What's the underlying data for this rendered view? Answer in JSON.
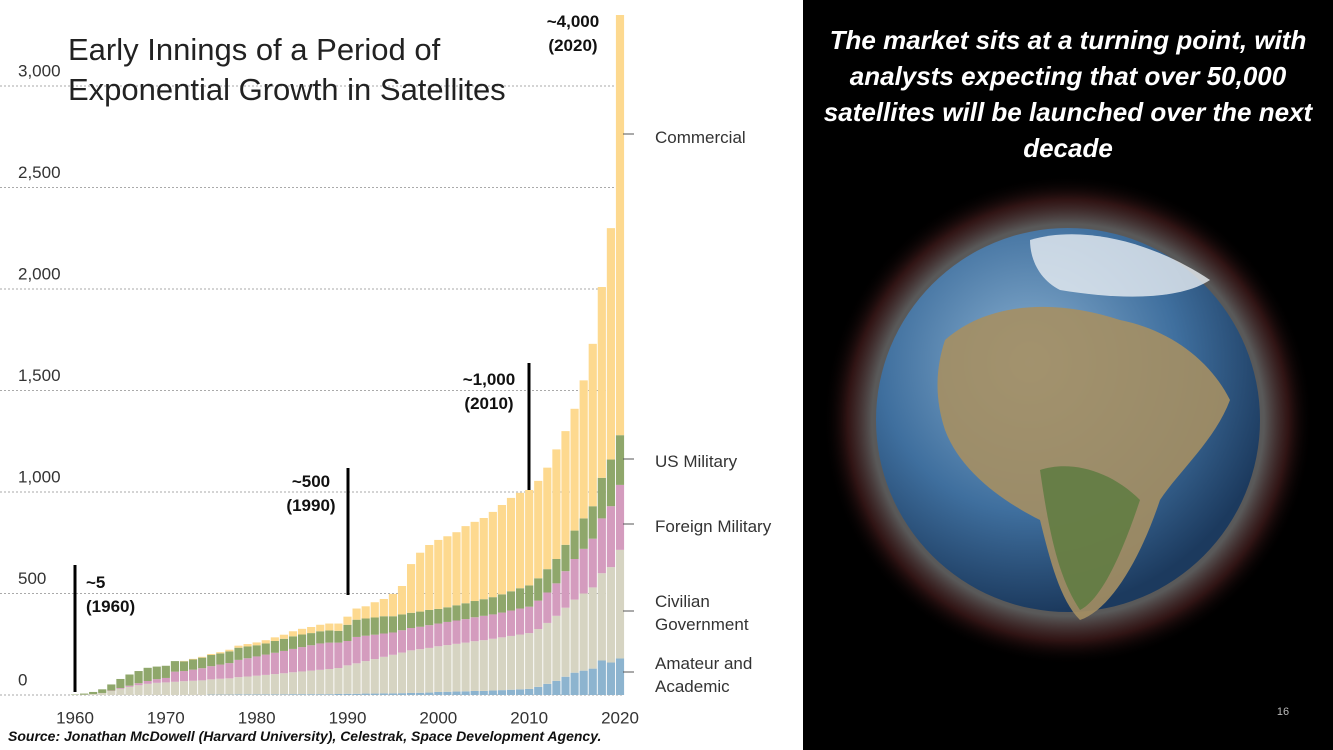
{
  "chart_data": {
    "type": "stacked_bar",
    "title": "Early Innings of a Period of Exponential Growth in Satellites",
    "x": [
      1960,
      1961,
      1962,
      1963,
      1964,
      1965,
      1966,
      1967,
      1968,
      1969,
      1970,
      1971,
      1972,
      1973,
      1974,
      1975,
      1976,
      1977,
      1978,
      1979,
      1980,
      1981,
      1982,
      1983,
      1984,
      1985,
      1986,
      1987,
      1988,
      1989,
      1990,
      1991,
      1992,
      1993,
      1994,
      1995,
      1996,
      1997,
      1998,
      1999,
      2000,
      2001,
      2002,
      2003,
      2004,
      2005,
      2006,
      2007,
      2008,
      2009,
      2010,
      2011,
      2012,
      2013,
      2014,
      2015,
      2016,
      2017,
      2018,
      2019,
      2020
    ],
    "xlim": [
      1959.5,
      2020.5
    ],
    "xticks": [
      1960,
      1970,
      1980,
      1990,
      2000,
      2010,
      2020
    ],
    "ylim": [
      0,
      3350
    ],
    "yticks": [
      0,
      500,
      {
        "value": 1000,
        "label": "1,000"
      },
      {
        "value": 1500,
        "label": "1,500"
      },
      {
        "value": 2000,
        "label": "2,000"
      },
      {
        "value": 2500,
        "label": "2,500"
      },
      {
        "value": 3000,
        "label": "3,000"
      }
    ],
    "grid": true,
    "series": [
      {
        "name": "Amateur and Academic",
        "color": "#8db4cf",
        "values": [
          0,
          0,
          0,
          0,
          0,
          0,
          0,
          0,
          0,
          0,
          0,
          0,
          0,
          0,
          0,
          2,
          2,
          2,
          3,
          3,
          3,
          3,
          3,
          3,
          4,
          4,
          4,
          4,
          4,
          5,
          6,
          6,
          7,
          7,
          8,
          8,
          9,
          10,
          11,
          12,
          15,
          16,
          17,
          18,
          20,
          20,
          22,
          24,
          26,
          28,
          30,
          40,
          55,
          70,
          90,
          110,
          120,
          130,
          170,
          160,
          180
        ]
      },
      {
        "name": "Civilian Government",
        "color": "#d6d4c2",
        "values": [
          0,
          2,
          5,
          10,
          20,
          30,
          40,
          48,
          55,
          60,
          62,
          65,
          68,
          70,
          72,
          75,
          78,
          80,
          85,
          88,
          92,
          96,
          100,
          104,
          108,
          112,
          116,
          120,
          124,
          128,
          140,
          150,
          160,
          170,
          180,
          190,
          200,
          210,
          215,
          220,
          225,
          230,
          235,
          240,
          245,
          250,
          255,
          260,
          265,
          270,
          275,
          285,
          300,
          320,
          340,
          360,
          380,
          400,
          430,
          470,
          535
        ]
      },
      {
        "name": "Foreign Military",
        "color": "#d49cbe",
        "values": [
          0,
          0,
          0,
          0,
          2,
          4,
          6,
          10,
          14,
          18,
          22,
          50,
          50,
          55,
          60,
          65,
          70,
          75,
          85,
          90,
          95,
          100,
          105,
          110,
          115,
          120,
          125,
          130,
          130,
          125,
          120,
          130,
          125,
          120,
          115,
          110,
          110,
          110,
          110,
          112,
          112,
          114,
          115,
          116,
          118,
          120,
          120,
          122,
          125,
          128,
          130,
          140,
          150,
          160,
          180,
          200,
          220,
          240,
          270,
          300,
          320
        ]
      },
      {
        "name": "US Military",
        "color": "#8fa76b",
        "values": [
          2,
          5,
          10,
          18,
          30,
          45,
          55,
          60,
          65,
          62,
          60,
          52,
          48,
          50,
          52,
          55,
          55,
          58,
          60,
          58,
          55,
          55,
          58,
          60,
          62,
          62,
          60,
          60,
          60,
          58,
          80,
          85,
          85,
          85,
          85,
          80,
          78,
          75,
          75,
          75,
          72,
          72,
          75,
          78,
          80,
          82,
          85,
          90,
          95,
          100,
          105,
          110,
          115,
          120,
          130,
          140,
          150,
          160,
          200,
          230,
          245
        ]
      },
      {
        "name": "Commercial",
        "color": "#fdd98f",
        "values": [
          0,
          0,
          0,
          0,
          0,
          0,
          0,
          0,
          0,
          0,
          0,
          0,
          2,
          3,
          4,
          5,
          6,
          8,
          10,
          12,
          14,
          16,
          18,
          20,
          25,
          28,
          30,
          32,
          34,
          36,
          40,
          55,
          60,
          75,
          85,
          110,
          140,
          240,
          290,
          320,
          340,
          350,
          360,
          380,
          390,
          400,
          420,
          440,
          460,
          470,
          470,
          480,
          500,
          540,
          560,
          600,
          680,
          800,
          940,
          1140,
          2070
        ]
      }
    ],
    "annotations": [
      {
        "value_text": "~4,000",
        "year_text": "(2020)"
      },
      {
        "value_text": "~1,000",
        "year_text": "(2010)"
      },
      {
        "value_text": "~500",
        "year_text": "(1990)"
      },
      {
        "value_text": "~5",
        "year_text": "(1960)"
      }
    ]
  },
  "source": "Source: Jonathan McDowell (Harvard University), Celestrak, Space Development Agency.",
  "headline": "The market sits at a turning point, with analysts expecting that over 50,000 satellites will be launched over the next decade",
  "page_number": "16"
}
